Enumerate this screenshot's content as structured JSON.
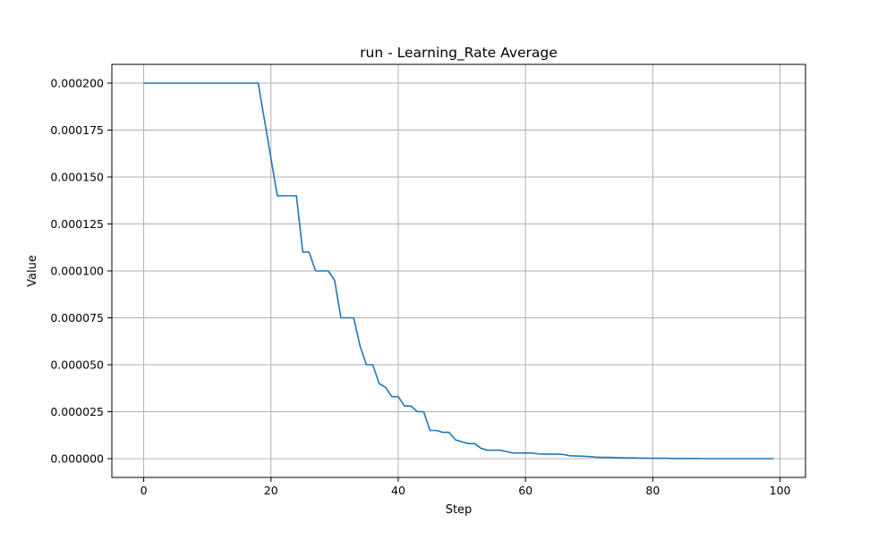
{
  "chart_data": {
    "type": "line",
    "title": "run - Learning_Rate Average",
    "xlabel": "Step",
    "ylabel": "Value",
    "xlim": [
      -5,
      104
    ],
    "ylim": [
      -1e-05,
      0.00021
    ],
    "grid": true,
    "xticks": [
      0,
      20,
      40,
      60,
      80,
      100
    ],
    "xtick_labels": [
      "0",
      "20",
      "40",
      "60",
      "80",
      "100"
    ],
    "yticks": [
      0,
      2.5e-05,
      5e-05,
      7.5e-05,
      0.0001,
      0.000125,
      0.00015,
      0.000175,
      0.0002
    ],
    "ytick_labels": [
      "0.000000",
      "0.000025",
      "0.000050",
      "0.000075",
      "0.000100",
      "0.000125",
      "0.000150",
      "0.000175",
      "0.000200"
    ],
    "series": [
      {
        "color": "#1f77b4",
        "x": [
          0,
          1,
          2,
          3,
          4,
          5,
          6,
          7,
          8,
          9,
          10,
          11,
          12,
          13,
          14,
          15,
          16,
          17,
          18,
          19,
          20,
          21,
          22,
          23,
          24,
          25,
          26,
          27,
          28,
          29,
          30,
          31,
          32,
          33,
          34,
          35,
          36,
          37,
          38,
          39,
          40,
          41,
          42,
          43,
          44,
          45,
          46,
          47,
          48,
          49,
          50,
          51,
          52,
          53,
          54,
          55,
          56,
          57,
          58,
          59,
          60,
          61,
          62,
          63,
          64,
          65,
          66,
          67,
          68,
          69,
          70,
          71,
          72,
          73,
          74,
          75,
          76,
          77,
          78,
          79,
          80,
          81,
          82,
          83,
          84,
          85,
          86,
          87,
          88,
          89,
          90,
          91,
          92,
          93,
          94,
          95,
          96,
          97,
          98,
          99
        ],
        "y": [
          0.0002,
          0.0002,
          0.0002,
          0.0002,
          0.0002,
          0.0002,
          0.0002,
          0.0002,
          0.0002,
          0.0002,
          0.0002,
          0.0002,
          0.0002,
          0.0002,
          0.0002,
          0.0002,
          0.0002,
          0.0002,
          0.0002,
          0.00018,
          0.00016,
          0.00014,
          0.00014,
          0.00014,
          0.00014,
          0.00011,
          0.00011,
          0.0001,
          0.0001,
          0.0001,
          9.5e-05,
          7.5e-05,
          7.5e-05,
          7.5e-05,
          6e-05,
          5e-05,
          5e-05,
          4e-05,
          3.8e-05,
          3.3e-05,
          3.3e-05,
          2.8e-05,
          2.8e-05,
          2.5e-05,
          2.5e-05,
          1.5e-05,
          1.5e-05,
          1.4e-05,
          1.4e-05,
          1e-05,
          9e-06,
          8e-06,
          8e-06,
          5.5e-06,
          4.5e-06,
          4.5e-06,
          4.5e-06,
          3.8e-06,
          3e-06,
          3e-06,
          3e-06,
          3e-06,
          2.5e-06,
          2.4e-06,
          2.4e-06,
          2.4e-06,
          2.2e-06,
          1.5e-06,
          1.4e-06,
          1.3e-06,
          1.1e-06,
          8e-07,
          7e-07,
          7e-07,
          6e-07,
          5e-07,
          4e-07,
          4e-07,
          3e-07,
          3e-07,
          2e-07,
          2e-07,
          2e-07,
          1e-07,
          1e-07,
          1e-07,
          1e-07,
          1e-07,
          0,
          0,
          0,
          0,
          0,
          0,
          0,
          0,
          0,
          0,
          0,
          0
        ]
      }
    ]
  }
}
